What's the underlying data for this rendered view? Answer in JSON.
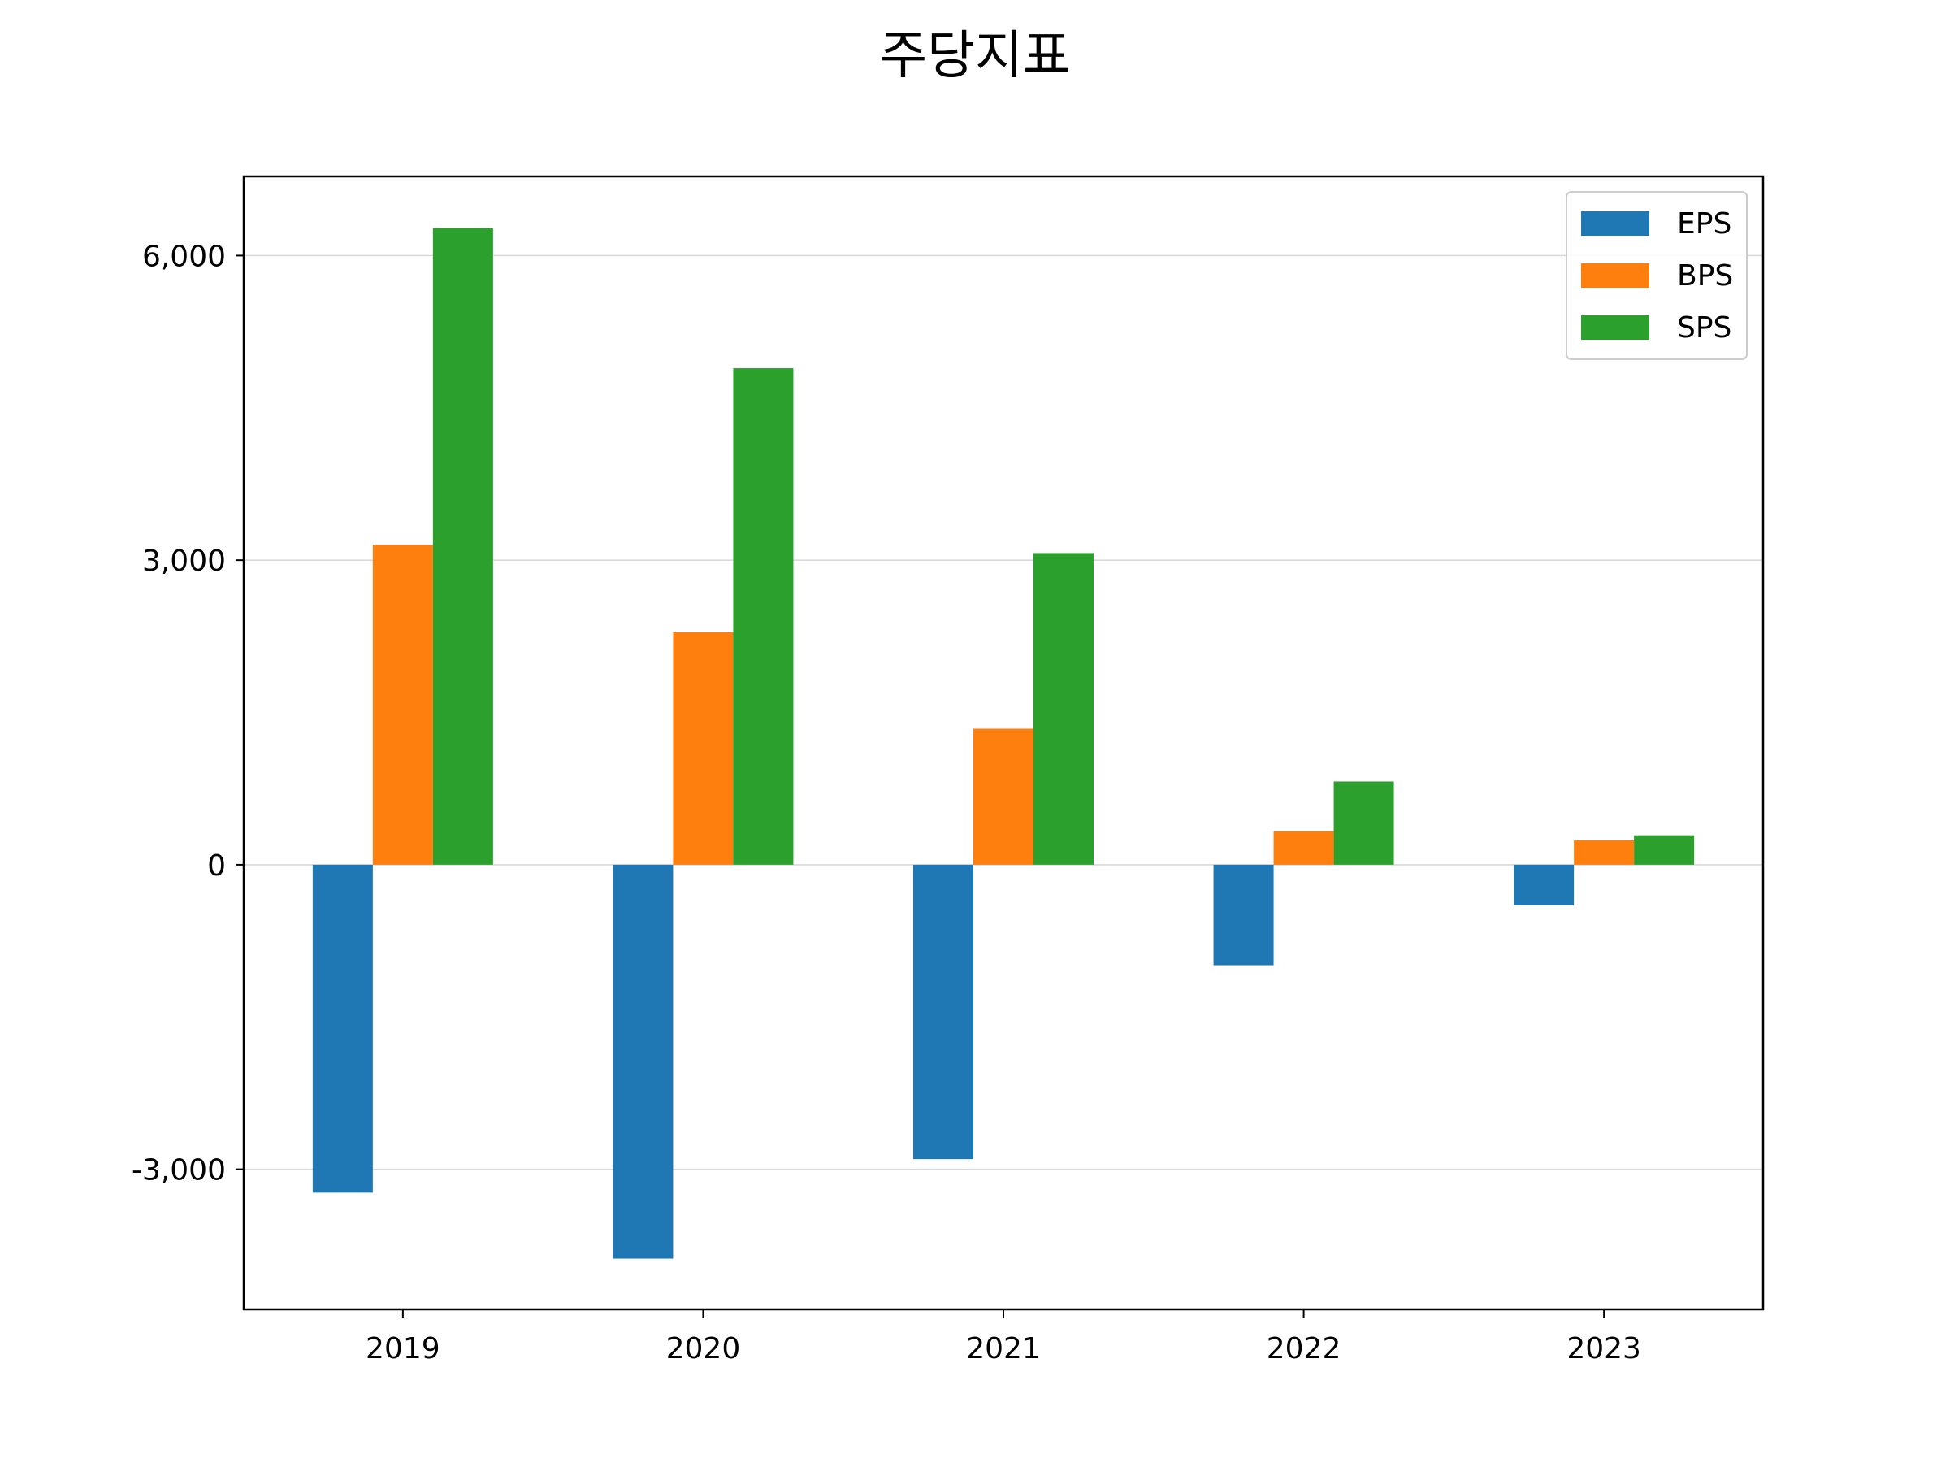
{
  "chart_data": {
    "type": "bar",
    "title": "주당지표",
    "xlabel": "",
    "ylabel": "",
    "categories": [
      "2019",
      "2020",
      "2021",
      "2022",
      "2023"
    ],
    "series": [
      {
        "name": "EPS",
        "color": "#1f77b4",
        "values": [
          -3230,
          -3880,
          -2900,
          -990,
          -400
        ]
      },
      {
        "name": "BPS",
        "color": "#ff7f0e",
        "values": [
          3150,
          2290,
          1340,
          330,
          240
        ]
      },
      {
        "name": "SPS",
        "color": "#2ca02c",
        "values": [
          6270,
          4890,
          3070,
          820,
          290
        ]
      }
    ],
    "ylim": [
      -4380,
      6780
    ],
    "yticks": [
      -3000,
      0,
      3000,
      6000
    ],
    "ytick_labels": [
      "-3,000",
      "0",
      "3,000",
      "6,000"
    ],
    "grid": "horizontal",
    "legend_position": "top-right"
  }
}
